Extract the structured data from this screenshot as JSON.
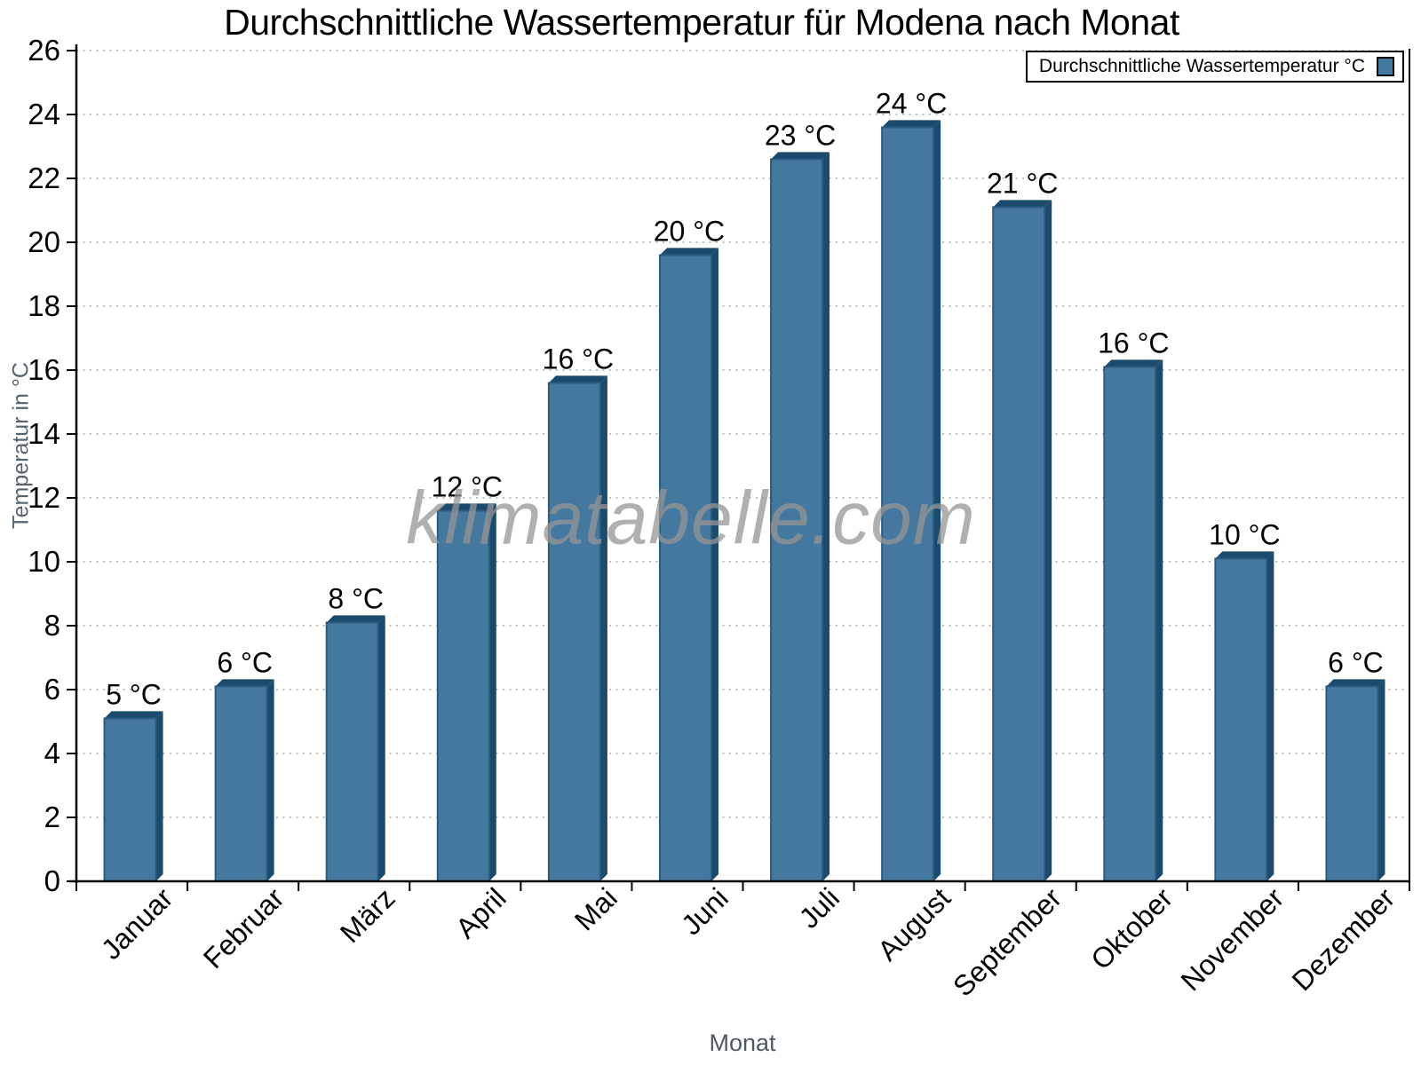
{
  "header": {
    "title": "Durchschnittliche Wassertemperatur für Modena nach Monat"
  },
  "watermark": {
    "text": "klimatabelle.com"
  },
  "legend": {
    "label": "Durchschnittliche Wassertemperatur °C",
    "swatch_color": "#45789E"
  },
  "chart_data": {
    "type": "bar",
    "title": "Durchschnittliche Wassertemperatur für Modena nach Monat",
    "categories": [
      "Januar",
      "Februar",
      "März",
      "April",
      "Mai",
      "Juni",
      "Juli",
      "August",
      "September",
      "Oktober",
      "November",
      "Dezember"
    ],
    "series": [
      {
        "name": "Durchschnittliche Wassertemperatur °C",
        "values": [
          5.1,
          6.1,
          8.1,
          11.6,
          15.6,
          19.6,
          22.6,
          23.6,
          21.1,
          16.1,
          10.1,
          6.1
        ],
        "data_labels": [
          "5 °C",
          "6 °C",
          "8 °C",
          "12 °C",
          "16 °C",
          "20 °C",
          "23 °C",
          "24 °C",
          "21 °C",
          "16 °C",
          "10 °C",
          "6 °C"
        ]
      }
    ],
    "xlabel": "Monat",
    "ylabel": "Temperatur in °C",
    "ylim": [
      0,
      26
    ],
    "ytick_interval": 2,
    "yticks": [
      0,
      2,
      4,
      6,
      8,
      10,
      12,
      14,
      16,
      18,
      20,
      22,
      24,
      26
    ],
    "grid": "horizontal-dotted",
    "legend_position": "top-right-inside",
    "colors": {
      "bar_fill": "#45789E",
      "bar_shade": "#1A4A6C",
      "bar_edge": "#2B5C80",
      "grid": "#ABABAB",
      "axis": "#000000",
      "tick_label": "#000000",
      "axis_title_y": "#55636F",
      "axis_title_x": "#4D5A66",
      "watermark": "#B0B0B0"
    }
  }
}
